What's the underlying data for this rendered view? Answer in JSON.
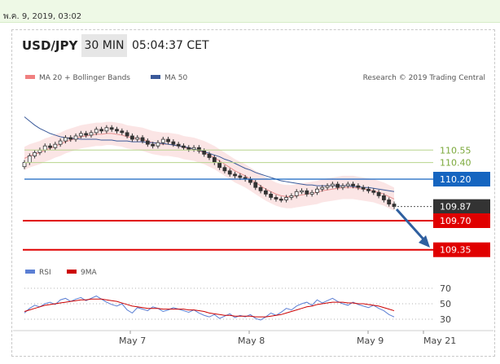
{
  "timestamp": "พ.ค. 9, 2019, 03:02",
  "header": {
    "pair": "USD/JPY",
    "timeframe": "30 MIN",
    "time": "05:04:37 CET"
  },
  "legend": {
    "bb": "MA 20 + Bollinger Bands",
    "ma50": "MA 50",
    "rsi": "RSI",
    "rsi_ma": "9MA"
  },
  "credit": "Research © 2019 Trading Central",
  "colors": {
    "bb": "#f08080",
    "ma50": "#3a5a9a",
    "rsi": "#5b7fd4",
    "rsi_ma": "#cc0000",
    "pivot": "#1565c0",
    "support": "#e00000",
    "resistance": "#8ab84a"
  },
  "chart_data": [
    {
      "type": "candlestick",
      "x_ticks": [
        "May 7",
        "May 8",
        "May 9",
        "May 21"
      ],
      "ylim": [
        109.3,
        110.9
      ],
      "levels": [
        {
          "label": "110.55",
          "value": 110.55,
          "kind": "resistance"
        },
        {
          "label": "110.40",
          "value": 110.4,
          "kind": "resistance"
        },
        {
          "label": "110.20",
          "value": 110.2,
          "kind": "pivot"
        },
        {
          "label": "109.87",
          "value": 109.87,
          "kind": "last"
        },
        {
          "label": "109.70",
          "value": 109.7,
          "kind": "support"
        },
        {
          "label": "109.35",
          "value": 109.35,
          "kind": "support"
        }
      ],
      "close": [
        110.4,
        110.48,
        110.52,
        110.55,
        110.6,
        110.58,
        110.62,
        110.66,
        110.7,
        110.68,
        110.72,
        110.75,
        110.73,
        110.76,
        110.8,
        110.78,
        110.82,
        110.8,
        110.78,
        110.76,
        110.72,
        110.68,
        110.7,
        110.66,
        110.62,
        110.6,
        110.64,
        110.68,
        110.65,
        110.62,
        110.6,
        110.58,
        110.56,
        110.58,
        110.54,
        110.5,
        110.46,
        110.4,
        110.34,
        110.3,
        110.26,
        110.24,
        110.22,
        110.2,
        110.16,
        110.1,
        110.06,
        110.02,
        109.98,
        109.96,
        109.95,
        109.98,
        110.0,
        110.05,
        110.06,
        110.02,
        110.04,
        110.08,
        110.1,
        110.12,
        110.14,
        110.1,
        110.12,
        110.14,
        110.12,
        110.1,
        110.08,
        110.06,
        110.04,
        110.0,
        109.95,
        109.9,
        109.87
      ],
      "ma20": [
        110.45,
        110.48,
        110.5,
        110.52,
        110.55,
        110.57,
        110.6,
        110.62,
        110.65,
        110.67,
        110.69,
        110.71,
        110.72,
        110.73,
        110.74,
        110.74,
        110.75,
        110.75,
        110.74,
        110.73,
        110.71,
        110.7,
        110.69,
        110.68,
        110.66,
        110.64,
        110.63,
        110.62,
        110.62,
        110.61,
        110.6,
        110.58,
        110.57,
        110.56,
        110.54,
        110.52,
        110.49,
        110.46,
        110.42,
        110.38,
        110.34,
        110.3,
        110.27,
        110.24,
        110.2,
        110.16,
        110.12,
        110.08,
        110.05,
        110.02,
        110.0,
        109.99,
        109.99,
        110.0,
        110.01,
        110.02,
        110.03,
        110.04,
        110.06,
        110.07,
        110.08,
        110.09,
        110.1,
        110.1,
        110.1,
        110.09,
        110.08,
        110.07,
        110.06,
        110.04,
        110.02,
        109.99,
        109.96
      ],
      "ma50": [
        110.95,
        110.9,
        110.85,
        110.81,
        110.78,
        110.75,
        110.73,
        110.71,
        110.7,
        110.69,
        110.69,
        110.68,
        110.68,
        110.68,
        110.68,
        110.67,
        110.67,
        110.67,
        110.66,
        110.66,
        110.66,
        110.65,
        110.65,
        110.65,
        110.64,
        110.64,
        110.63,
        110.63,
        110.62,
        110.61,
        110.6,
        110.59,
        110.58,
        110.56,
        110.55,
        110.53,
        110.51,
        110.49,
        110.47,
        110.44,
        110.42,
        110.39,
        110.36,
        110.33,
        110.31,
        110.28,
        110.26,
        110.24,
        110.22,
        110.2,
        110.18,
        110.17,
        110.16,
        110.15,
        110.14,
        110.13,
        110.13,
        110.12,
        110.12,
        110.12,
        110.12,
        110.12,
        110.12,
        110.12,
        110.11,
        110.11,
        110.1,
        110.1,
        110.09,
        110.08,
        110.07,
        110.06,
        110.05
      ]
    },
    {
      "type": "line",
      "name": "RSI",
      "x_ticks": [
        "May 7",
        "May 8",
        "May 9",
        "May 21"
      ],
      "y_ticks": [
        30,
        50,
        70
      ],
      "ylim": [
        20,
        80
      ],
      "rsi": [
        38,
        44,
        48,
        46,
        50,
        52,
        49,
        55,
        57,
        53,
        56,
        58,
        54,
        57,
        60,
        56,
        52,
        49,
        47,
        50,
        42,
        38,
        45,
        43,
        41,
        46,
        44,
        40,
        42,
        45,
        43,
        41,
        39,
        42,
        38,
        35,
        33,
        36,
        31,
        34,
        37,
        32,
        35,
        33,
        36,
        31,
        29,
        33,
        38,
        35,
        39,
        44,
        42,
        47,
        50,
        52,
        48,
        55,
        51,
        54,
        57,
        53,
        50,
        48,
        52,
        49,
        47,
        45,
        48,
        44,
        41,
        36,
        33
      ],
      "rsi_ma": [
        40,
        42,
        44,
        46,
        48,
        49,
        50,
        51,
        52,
        53,
        54,
        55,
        55,
        56,
        56,
        56,
        55,
        54,
        53,
        51,
        49,
        47,
        46,
        45,
        44,
        44,
        44,
        43,
        43,
        43,
        43,
        43,
        42,
        42,
        41,
        40,
        38,
        37,
        36,
        35,
        35,
        34,
        34,
        34,
        34,
        33,
        33,
        33,
        34,
        35,
        36,
        38,
        40,
        42,
        44,
        46,
        47,
        49,
        50,
        51,
        52,
        52,
        52,
        51,
        51,
        50,
        50,
        49,
        48,
        47,
        45,
        43,
        41
      ]
    }
  ]
}
